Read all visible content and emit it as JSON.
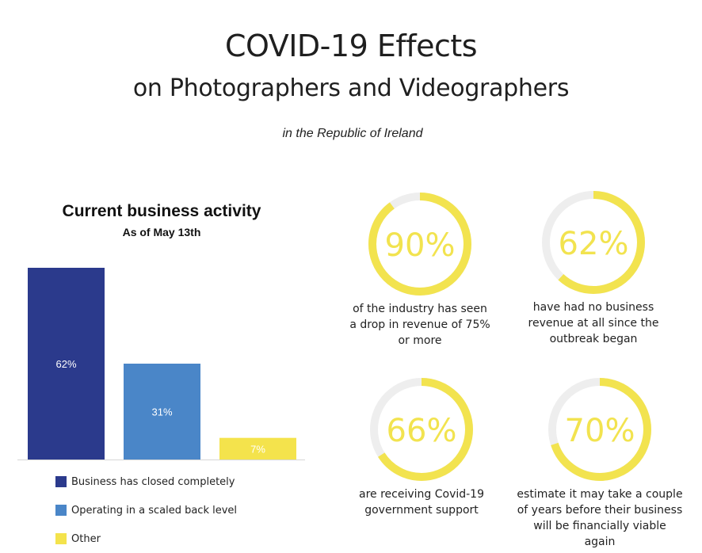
{
  "header": {
    "title": "COVID-19 Effects",
    "subtitle": "on Photographers and Videographers",
    "region": "in the Republic of Ireland"
  },
  "colors": {
    "closed": "#2b3a8c",
    "scaled": "#4a86c8",
    "other": "#f4e34c",
    "ring_track": "#eeeeee",
    "ring_fill": "#f2e34f"
  },
  "chart_data": {
    "type": "bar",
    "title": "Current business activity",
    "subtitle": "As of May 13th",
    "categories": [
      "Business has closed completely",
      "Operating in a scaled back level",
      "Other"
    ],
    "values": [
      62,
      31,
      7
    ],
    "data_labels": [
      "62%",
      "31%",
      "7%"
    ],
    "ylim": [
      0,
      62
    ],
    "grid": false,
    "legend": "bottom"
  },
  "stats": [
    {
      "percent": 90,
      "label": "90%",
      "caption": [
        "of the industry has seen",
        "a drop in revenue of 75%",
        "or more"
      ]
    },
    {
      "percent": 62,
      "label": "62%",
      "caption": [
        "have had no business",
        "revenue at all since the",
        "outbreak began"
      ]
    },
    {
      "percent": 66,
      "label": "66%",
      "caption": [
        "are receiving Covid-19",
        "government support"
      ]
    },
    {
      "percent": 70,
      "label": "70%",
      "caption": [
        "estimate it may take a couple",
        "of years before their business",
        "will be financially viable again"
      ]
    }
  ]
}
